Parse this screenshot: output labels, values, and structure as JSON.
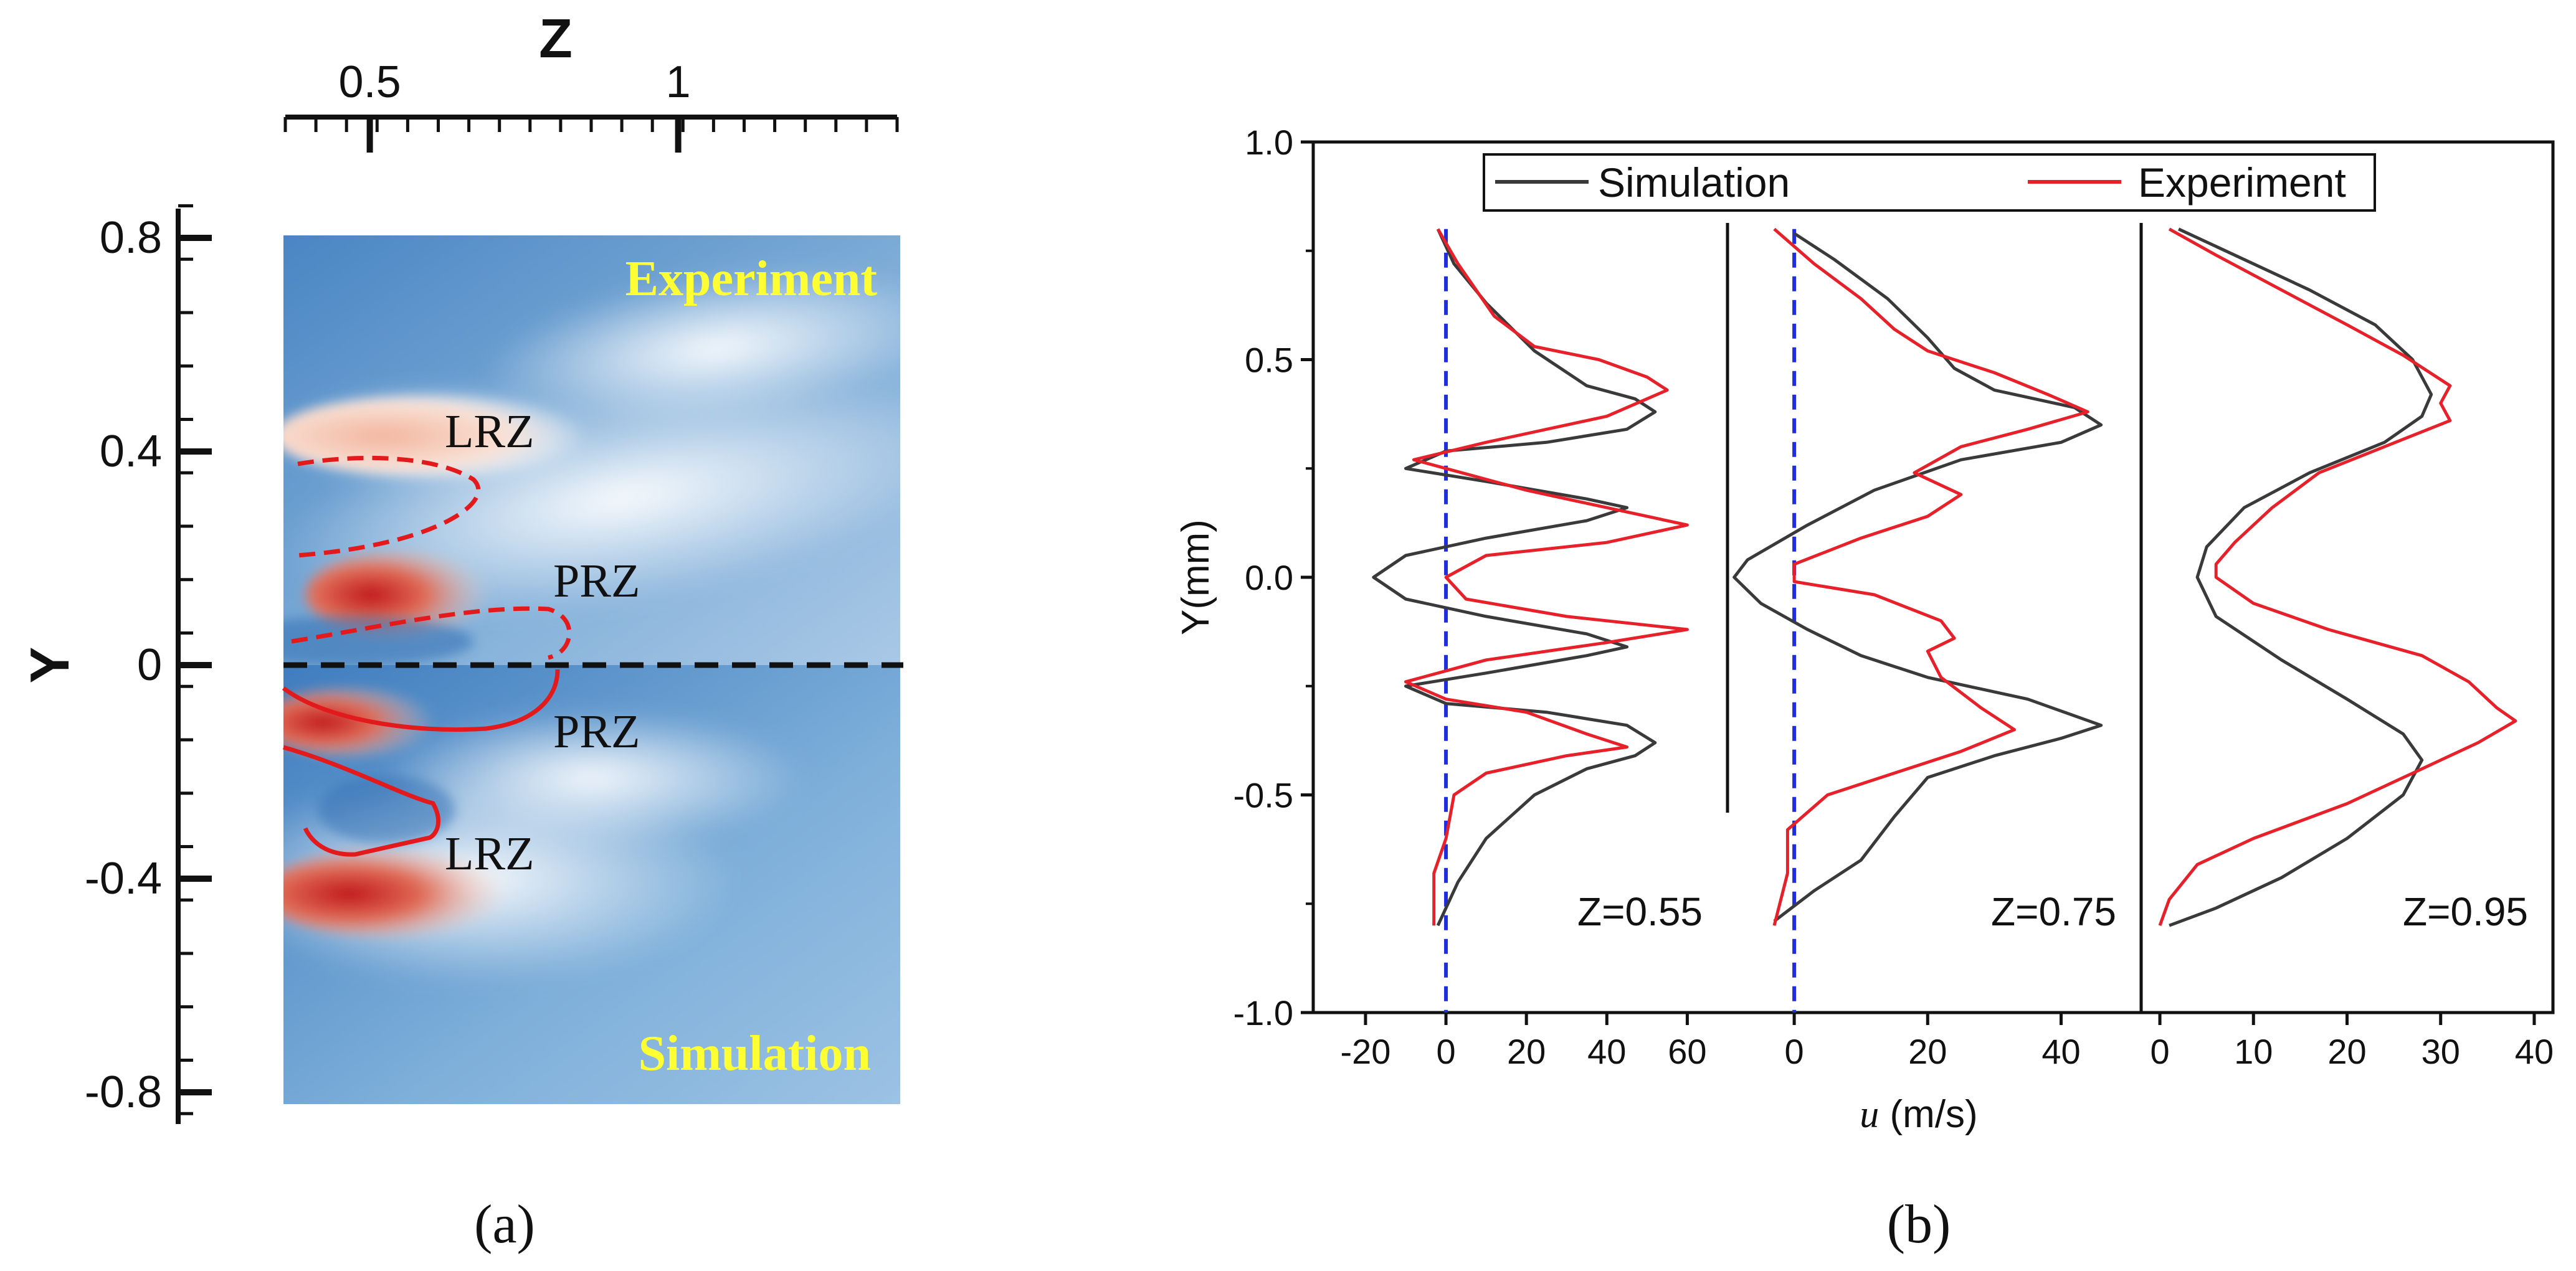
{
  "panel_a": {
    "caption": "(a)",
    "label_top": "Experiment",
    "label_bottom": "Simulation",
    "zones": {
      "lrz_top": "LRZ",
      "prz_top": "PRZ",
      "prz_bottom": "PRZ",
      "lrz_bottom": "LRZ"
    },
    "label_color": "#ffff33",
    "outline_color": "#e31a1c"
  },
  "panel_b": {
    "caption": "(b)",
    "legend": {
      "simulation": "Simulation",
      "experiment": "Experiment"
    },
    "colors": {
      "simulation": "#3a3a3a",
      "experiment": "#e8202a",
      "zero_line": "#1f2de0"
    }
  },
  "chart_data": [
    {
      "id": "contour-map",
      "type": "heatmap",
      "title": "",
      "xlabel": "Z",
      "ylabel": "Y",
      "x_ticks": [
        0.5,
        1
      ],
      "x_tick_labels": [
        "0.5",
        "1"
      ],
      "y_ticks": [
        0.8,
        0.4,
        0,
        -0.4,
        -0.8
      ],
      "y_tick_labels": [
        "0.8",
        "0.4",
        "0",
        "-0.4",
        "-0.8"
      ],
      "xlim": [
        0.36,
        1.36
      ],
      "ylim": [
        -0.84,
        0.86
      ],
      "regions": [
        {
          "name": "LRZ",
          "source": "experiment",
          "z": 0.71,
          "y": 0.45
        },
        {
          "name": "PRZ",
          "source": "experiment",
          "z": 0.91,
          "y": 0.17
        },
        {
          "name": "PRZ",
          "source": "simulation",
          "z": 0.91,
          "y": -0.12
        },
        {
          "name": "LRZ",
          "source": "simulation",
          "z": 0.71,
          "y": -0.35
        }
      ],
      "reflection_line_y": 0
    },
    {
      "id": "velocity-profiles",
      "type": "line",
      "ylabel": "Y(mm)",
      "xlabel_italic": "u",
      "xlabel_rest": " (m/s)",
      "ylim": [
        -1.0,
        1.0
      ],
      "y_ticks": [
        1.0,
        0.5,
        0.0,
        -0.5,
        -1.0
      ],
      "y_tick_labels": [
        "1.0",
        "0.5",
        "0.0",
        "-0.5",
        "-1.0"
      ],
      "legend_position": "top",
      "subplots": [
        {
          "label": "Z=0.55",
          "xlim": [
            -33,
            70
          ],
          "x_ticks": [
            -20,
            0,
            20,
            40,
            60
          ],
          "x_tick_labels": [
            "-20",
            "0",
            "20",
            "40",
            "60"
          ],
          "zero_line": true,
          "series": [
            {
              "name": "Simulation",
              "points": [
                [
                  -2,
                  0.8
                ],
                [
                  2,
                  0.72
                ],
                [
                  10,
                  0.63
                ],
                [
                  22,
                  0.52
                ],
                [
                  35,
                  0.44
                ],
                [
                  47,
                  0.41
                ],
                [
                  52,
                  0.38
                ],
                [
                  45,
                  0.34
                ],
                [
                  25,
                  0.31
                ],
                [
                  0,
                  0.29
                ],
                [
                  -10,
                  0.25
                ],
                [
                  10,
                  0.22
                ],
                [
                  35,
                  0.18
                ],
                [
                  45,
                  0.16
                ],
                [
                  35,
                  0.13
                ],
                [
                  10,
                  0.09
                ],
                [
                  -10,
                  0.05
                ],
                [
                  -18,
                  0.0
                ],
                [
                  -10,
                  -0.05
                ],
                [
                  10,
                  -0.09
                ],
                [
                  35,
                  -0.13
                ],
                [
                  45,
                  -0.16
                ],
                [
                  35,
                  -0.18
                ],
                [
                  10,
                  -0.22
                ],
                [
                  -10,
                  -0.25
                ],
                [
                  0,
                  -0.29
                ],
                [
                  25,
                  -0.31
                ],
                [
                  45,
                  -0.34
                ],
                [
                  52,
                  -0.38
                ],
                [
                  47,
                  -0.41
                ],
                [
                  35,
                  -0.44
                ],
                [
                  22,
                  -0.5
                ],
                [
                  10,
                  -0.6
                ],
                [
                  3,
                  -0.7
                ],
                [
                  -2,
                  -0.8
                ]
              ]
            },
            {
              "name": "Experiment",
              "points": [
                [
                  -2,
                  0.8
                ],
                [
                  3,
                  0.72
                ],
                [
                  12,
                  0.6
                ],
                [
                  22,
                  0.53
                ],
                [
                  38,
                  0.5
                ],
                [
                  50,
                  0.46
                ],
                [
                  55,
                  0.43
                ],
                [
                  40,
                  0.37
                ],
                [
                  10,
                  0.31
                ],
                [
                  -8,
                  0.27
                ],
                [
                  0,
                  0.25
                ],
                [
                  20,
                  0.2
                ],
                [
                  40,
                  0.16
                ],
                [
                  60,
                  0.12
                ],
                [
                  40,
                  0.08
                ],
                [
                  10,
                  0.05
                ],
                [
                  0,
                  0.0
                ],
                [
                  5,
                  -0.05
                ],
                [
                  30,
                  -0.09
                ],
                [
                  60,
                  -0.12
                ],
                [
                  40,
                  -0.15
                ],
                [
                  10,
                  -0.19
                ],
                [
                  -10,
                  -0.24
                ],
                [
                  0,
                  -0.28
                ],
                [
                  20,
                  -0.31
                ],
                [
                  35,
                  -0.36
                ],
                [
                  45,
                  -0.39
                ],
                [
                  30,
                  -0.41
                ],
                [
                  10,
                  -0.45
                ],
                [
                  2,
                  -0.5
                ],
                [
                  0,
                  -0.6
                ],
                [
                  -3,
                  -0.68
                ],
                [
                  -3,
                  -0.8
                ]
              ]
            }
          ]
        },
        {
          "label": "Z=0.75",
          "xlim": [
            -10,
            52
          ],
          "x_ticks": [
            0,
            20,
            40
          ],
          "x_tick_labels": [
            "0",
            "20",
            "40"
          ],
          "zero_line": true,
          "series": [
            {
              "name": "Simulation",
              "points": [
                [
                  0,
                  0.79
                ],
                [
                  6,
                  0.73
                ],
                [
                  14,
                  0.64
                ],
                [
                  20,
                  0.55
                ],
                [
                  24,
                  0.48
                ],
                [
                  30,
                  0.43
                ],
                [
                  42,
                  0.39
                ],
                [
                  46,
                  0.35
                ],
                [
                  40,
                  0.31
                ],
                [
                  25,
                  0.27
                ],
                [
                  12,
                  0.2
                ],
                [
                  2,
                  0.12
                ],
                [
                  -7,
                  0.04
                ],
                [
                  -9,
                  0.0
                ],
                [
                  -5,
                  -0.06
                ],
                [
                  2,
                  -0.12
                ],
                [
                  10,
                  -0.18
                ],
                [
                  20,
                  -0.23
                ],
                [
                  35,
                  -0.28
                ],
                [
                  46,
                  -0.34
                ],
                [
                  40,
                  -0.37
                ],
                [
                  30,
                  -0.41
                ],
                [
                  20,
                  -0.46
                ],
                [
                  15,
                  -0.55
                ],
                [
                  10,
                  -0.65
                ],
                [
                  3,
                  -0.72
                ],
                [
                  -3,
                  -0.79
                ]
              ]
            },
            {
              "name": "Experiment",
              "points": [
                [
                  -3,
                  0.8
                ],
                [
                  3,
                  0.72
                ],
                [
                  10,
                  0.64
                ],
                [
                  15,
                  0.57
                ],
                [
                  20,
                  0.52
                ],
                [
                  30,
                  0.47
                ],
                [
                  38,
                  0.42
                ],
                [
                  44,
                  0.38
                ],
                [
                  35,
                  0.34
                ],
                [
                  25,
                  0.3
                ],
                [
                  18,
                  0.24
                ],
                [
                  25,
                  0.19
                ],
                [
                  20,
                  0.14
                ],
                [
                  10,
                  0.09
                ],
                [
                  0,
                  0.03
                ],
                [
                  0,
                  -0.01
                ],
                [
                  12,
                  -0.04
                ],
                [
                  22,
                  -0.1
                ],
                [
                  24,
                  -0.14
                ],
                [
                  20,
                  -0.17
                ],
                [
                  22,
                  -0.23
                ],
                [
                  28,
                  -0.3
                ],
                [
                  33,
                  -0.35
                ],
                [
                  25,
                  -0.4
                ],
                [
                  15,
                  -0.45
                ],
                [
                  5,
                  -0.5
                ],
                [
                  -1,
                  -0.58
                ],
                [
                  -1,
                  -0.68
                ],
                [
                  -3,
                  -0.8
                ]
              ]
            }
          ]
        },
        {
          "label": "Z=0.95",
          "xlim": [
            -2,
            42
          ],
          "x_ticks": [
            0,
            10,
            20,
            30,
            40
          ],
          "x_tick_labels": [
            "0",
            "10",
            "20",
            "30",
            "40"
          ],
          "zero_line": false,
          "series": [
            {
              "name": "Simulation",
              "points": [
                [
                  2,
                  0.8
                ],
                [
                  8,
                  0.74
                ],
                [
                  16,
                  0.66
                ],
                [
                  23,
                  0.58
                ],
                [
                  27,
                  0.5
                ],
                [
                  29,
                  0.42
                ],
                [
                  28,
                  0.37
                ],
                [
                  24,
                  0.31
                ],
                [
                  16,
                  0.24
                ],
                [
                  9,
                  0.16
                ],
                [
                  5,
                  0.07
                ],
                [
                  4,
                  0.0
                ],
                [
                  6,
                  -0.09
                ],
                [
                  13,
                  -0.19
                ],
                [
                  20,
                  -0.28
                ],
                [
                  26,
                  -0.36
                ],
                [
                  28,
                  -0.42
                ],
                [
                  26,
                  -0.5
                ],
                [
                  20,
                  -0.6
                ],
                [
                  13,
                  -0.69
                ],
                [
                  6,
                  -0.76
                ],
                [
                  1,
                  -0.8
                ]
              ]
            },
            {
              "name": "Experiment",
              "points": [
                [
                  1,
                  0.8
                ],
                [
                  6,
                  0.74
                ],
                [
                  13,
                  0.66
                ],
                [
                  20,
                  0.58
                ],
                [
                  26,
                  0.51
                ],
                [
                  31,
                  0.44
                ],
                [
                  30,
                  0.4
                ],
                [
                  31,
                  0.36
                ],
                [
                  24,
                  0.3
                ],
                [
                  17,
                  0.24
                ],
                [
                  12,
                  0.16
                ],
                [
                  8,
                  0.08
                ],
                [
                  6,
                  0.03
                ],
                [
                  6,
                  0.0
                ],
                [
                  10,
                  -0.06
                ],
                [
                  18,
                  -0.12
                ],
                [
                  28,
                  -0.18
                ],
                [
                  33,
                  -0.24
                ],
                [
                  36,
                  -0.3
                ],
                [
                  38,
                  -0.33
                ],
                [
                  34,
                  -0.38
                ],
                [
                  28,
                  -0.44
                ],
                [
                  20,
                  -0.52
                ],
                [
                  10,
                  -0.6
                ],
                [
                  4,
                  -0.66
                ],
                [
                  1,
                  -0.74
                ],
                [
                  0,
                  -0.8
                ]
              ]
            }
          ]
        }
      ]
    }
  ]
}
